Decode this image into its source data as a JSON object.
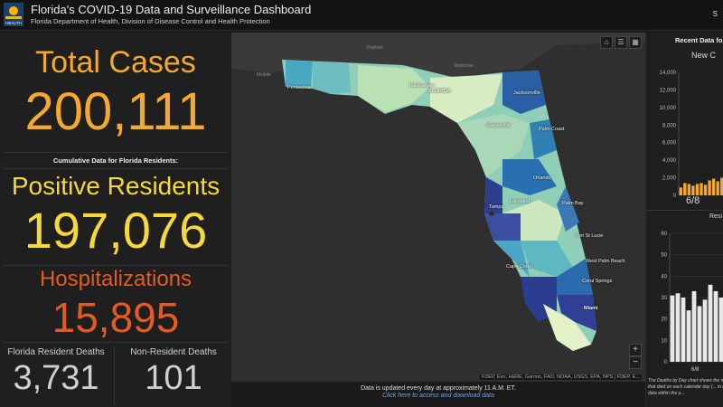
{
  "header": {
    "title": "Florida's COVID-19 Data and Surveillance Dashboard",
    "subtitle": "Florida Department of Health, Division of Disease Control and Health Protection",
    "logo_text": "HEALTH",
    "right_text": "S"
  },
  "stats": {
    "total_cases_label": "Total Cases",
    "total_cases_value": "200,111",
    "cumulative_note": "Cumulative Data for Florida Residents:",
    "positive_label": "Positive Residents",
    "positive_value": "197,076",
    "hosp_label": "Hospitalizations",
    "hosp_value": "15,895",
    "res_deaths_label": "Florida Resident Deaths",
    "res_deaths_value": "3,731",
    "nonres_deaths_label": "Non-Resident Deaths",
    "nonres_deaths_value": "101"
  },
  "colors": {
    "orange": "#f5a82e",
    "yellow": "#f7d83a",
    "red_orange": "#e45a23",
    "gray_text": "#cfcfcf"
  },
  "map": {
    "places": [
      "Dothan",
      "Valdosta",
      "Mobile",
      "Pensacola",
      "Tallahassee",
      "FLORIDA",
      "Jacksonville",
      "Gainesville",
      "Palm Coast",
      "Orlando",
      "Lakeland",
      "Tampa",
      "Palm Bay",
      "Port St Lucie",
      "West Palm Beach",
      "Cape Coral",
      "Coral Springs",
      "Miami"
    ],
    "tools": [
      "home-icon",
      "list-icon",
      "grid-icon"
    ],
    "zoom_in": "+",
    "zoom_out": "−",
    "attribution": "FDEP, Esri, HERE, Garmin, FAO, NOAA, USGS, EPA, NPS | FDEP, E..."
  },
  "footer": {
    "line1": "Data is updated every day at approximately 11 A.M. ET.",
    "line2": "Click here to access and download data"
  },
  "right_panel": {
    "title": "Recent Data fo",
    "chart1_title": "New C",
    "chart2_title": "Resi",
    "chart1_date": "6/8",
    "chart2_date": "6/8",
    "footnote": "The Deaths by Day chart shows the number of people that died on each calendar day (... in reporting, so data within the p..."
  },
  "chart_data": [
    {
      "type": "bar",
      "title": "New C",
      "yticks": [
        "0",
        "2,000",
        "4,000",
        "6,000",
        "8,000",
        "10,000",
        "12,000",
        "14,000"
      ],
      "ylim": [
        0,
        14000
      ],
      "x_label_shown": "6/8",
      "values": [
        900,
        1400,
        1300,
        1100,
        1300,
        1400,
        1200,
        1700,
        1900,
        1600,
        2000
      ]
    },
    {
      "type": "bar",
      "title": "Resi",
      "yticks": [
        "0",
        "10",
        "20",
        "30",
        "40",
        "50",
        "60"
      ],
      "ylim": [
        0,
        60
      ],
      "x_label_shown": "6/8",
      "values": [
        31,
        32,
        30,
        24,
        33,
        26,
        29,
        36,
        33,
        30
      ]
    }
  ]
}
